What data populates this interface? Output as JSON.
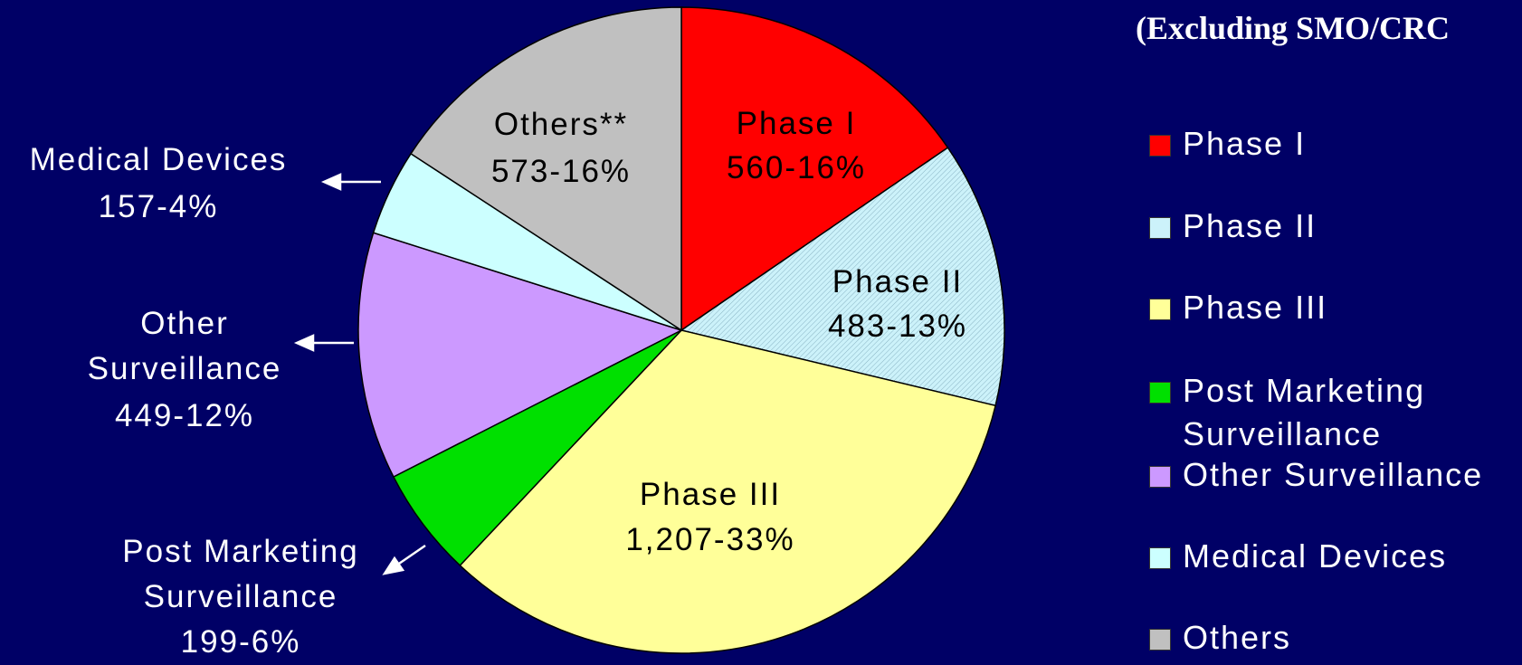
{
  "chart_data": {
    "type": "pie",
    "subtitle": "(Excluding SMO/CRC",
    "categories": [
      "Phase I",
      "Phase II",
      "Phase III",
      "Post Marketing Surveillance",
      "Other Surveillance",
      "Medical Devices",
      "Others"
    ],
    "labels": [
      "Phase I",
      "Phase II",
      "Phase III",
      "Post Marketing Surveillance",
      "Other Surveillance",
      "Medical Devices",
      "Others**"
    ],
    "values": [
      560,
      483,
      1207,
      199,
      449,
      157,
      573
    ],
    "value_labels": [
      "560-16%",
      "483-13%",
      "1,207-33%",
      "199-6%",
      "449-12%",
      "157-4%",
      "573-16%"
    ],
    "colors": [
      "#ff0000",
      "#ccf2fa",
      "#ffff99",
      "#00e000",
      "#cc99ff",
      "#ccffff",
      "#c0c0c0"
    ]
  }
}
